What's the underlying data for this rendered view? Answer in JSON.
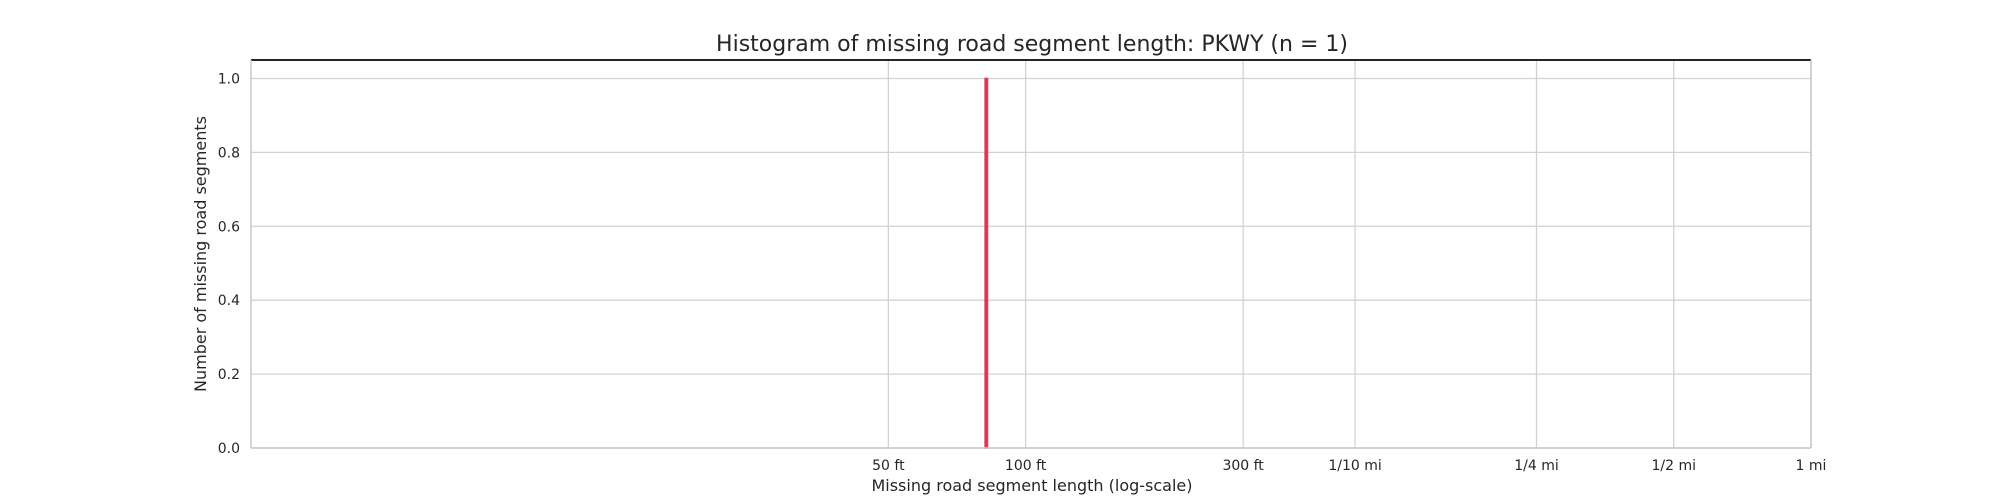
{
  "chart_data": {
    "type": "bar",
    "title": "Histogram of missing road segment length: PKWY (n = 1)",
    "xlabel": "Missing road segment  length (log-scale)",
    "ylabel": "Number of missing road segments",
    "x_scale": "log",
    "x_unit": "ft",
    "xlim": [
      2,
      5280
    ],
    "ylim": [
      0,
      1.05
    ],
    "grid": true,
    "legend": "none",
    "x_ticks": [
      {
        "value": 50,
        "label": "50 ft"
      },
      {
        "value": 100,
        "label": "100 ft"
      },
      {
        "value": 300,
        "label": "300 ft"
      },
      {
        "value": 528,
        "label": "1/10 mi"
      },
      {
        "value": 1320,
        "label": "1/4 mi"
      },
      {
        "value": 2640,
        "label": "1/2 mi"
      },
      {
        "value": 5280,
        "label": "1 mi"
      }
    ],
    "y_ticks": [
      {
        "value": 0,
        "label": "0.0"
      },
      {
        "value": 0.2,
        "label": "0.2"
      },
      {
        "value": 0.4,
        "label": "0.4"
      },
      {
        "value": 0.6,
        "label": "0.6"
      },
      {
        "value": 0.8,
        "label": "0.8"
      },
      {
        "value": 1.0,
        "label": "1.0"
      }
    ],
    "bars": [
      {
        "x_start": 81.5,
        "x_end": 82.5,
        "count": 1
      }
    ],
    "bar_color": "#dc3a52"
  }
}
